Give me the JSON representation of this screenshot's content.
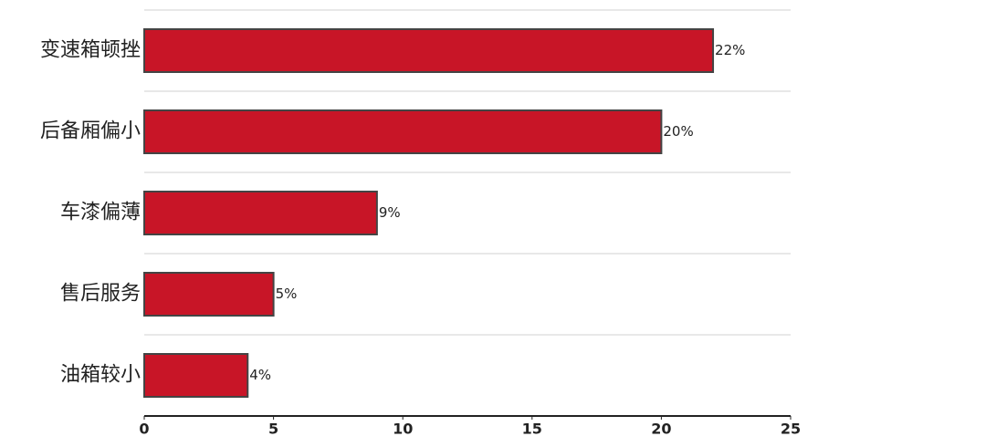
{
  "chart_data": {
    "type": "bar",
    "orientation": "horizontal",
    "categories": [
      "变速箱顿挫",
      "后备厢偏小",
      "车漆偏薄",
      "售后服务",
      "油箱较小"
    ],
    "values": [
      22,
      20,
      9,
      5,
      4
    ],
    "value_labels": [
      "22%",
      "20%",
      "9%",
      "5%",
      "4%"
    ],
    "color": "#c81527",
    "xlim": [
      0,
      25
    ],
    "xticks": [
      0,
      5,
      10,
      15,
      20,
      25
    ],
    "grid": true
  }
}
